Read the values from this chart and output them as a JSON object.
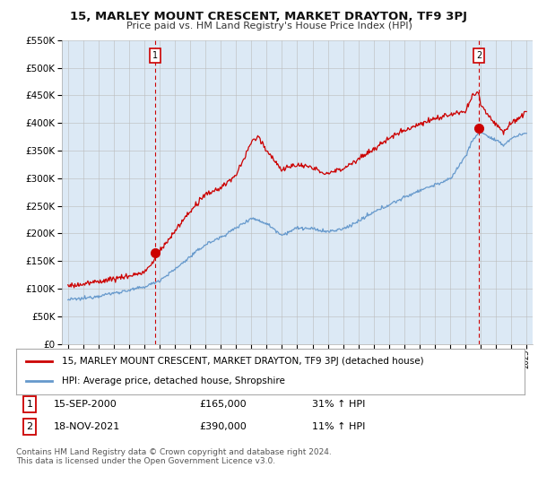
{
  "title": "15, MARLEY MOUNT CRESCENT, MARKET DRAYTON, TF9 3PJ",
  "subtitle": "Price paid vs. HM Land Registry's House Price Index (HPI)",
  "legend_line1": "15, MARLEY MOUNT CRESCENT, MARKET DRAYTON, TF9 3PJ (detached house)",
  "legend_line2": "HPI: Average price, detached house, Shropshire",
  "annotation1_label": "1",
  "annotation1_date": "15-SEP-2000",
  "annotation1_price": 165000,
  "annotation1_hpi": "31% ↑ HPI",
  "annotation1_year": 2000.71,
  "annotation2_label": "2",
  "annotation2_date": "18-NOV-2021",
  "annotation2_price": 390000,
  "annotation2_hpi": "11% ↑ HPI",
  "annotation2_year": 2021.88,
  "red_color": "#cc0000",
  "blue_color": "#6699cc",
  "chart_bg_color": "#dce9f5",
  "background_color": "#ffffff",
  "grid_color": "#bbbbbb",
  "footer_text": "Contains HM Land Registry data © Crown copyright and database right 2024.\nThis data is licensed under the Open Government Licence v3.0.",
  "ylim": [
    0,
    550000
  ],
  "xlim_start": 1994.6,
  "xlim_end": 2025.4,
  "yticks": [
    0,
    50000,
    100000,
    150000,
    200000,
    250000,
    300000,
    350000,
    400000,
    450000,
    500000,
    550000
  ],
  "xticks": [
    1995,
    1996,
    1997,
    1998,
    1999,
    2000,
    2001,
    2002,
    2003,
    2004,
    2005,
    2006,
    2007,
    2008,
    2009,
    2010,
    2011,
    2012,
    2013,
    2014,
    2015,
    2016,
    2017,
    2018,
    2019,
    2020,
    2021,
    2022,
    2023,
    2024,
    2025
  ]
}
